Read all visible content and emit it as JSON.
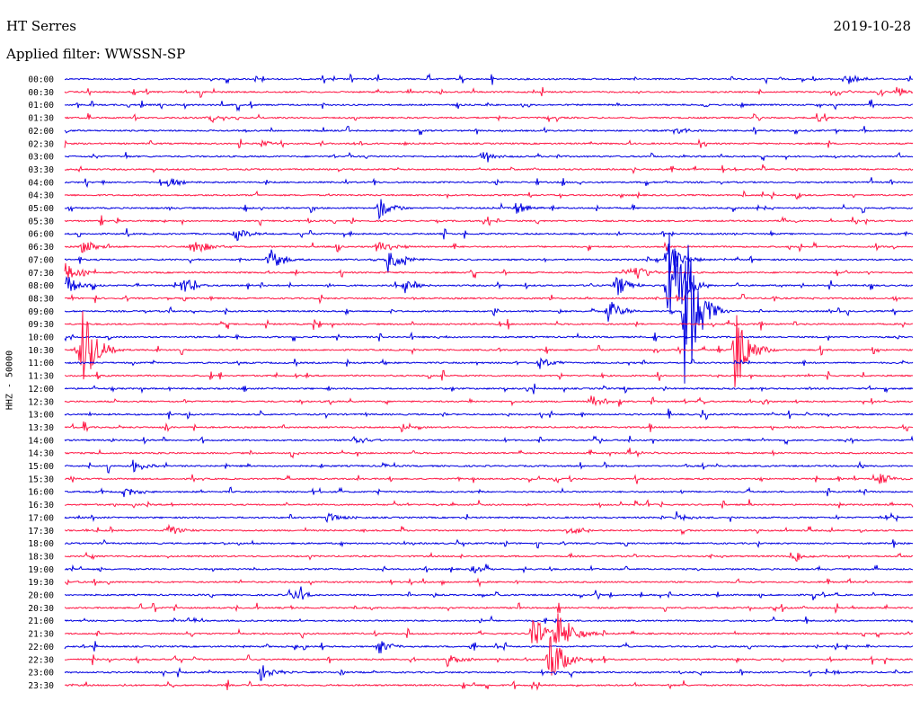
{
  "header": {
    "station": "HT Serres",
    "date": "2019-10-28",
    "filter": "Applied filter: WWSSN-SP"
  },
  "y_axis_label": "HHZ - 50000",
  "chart_data": {
    "type": "line",
    "title": "HT Serres",
    "subtitle": "Applied filter: WWSSN-SP",
    "date": "2019-10-28",
    "channel_label": "HHZ - 50000",
    "row_labels": [
      "00:00",
      "00:30",
      "01:00",
      "01:30",
      "02:00",
      "02:30",
      "03:00",
      "03:30",
      "04:00",
      "04:30",
      "05:00",
      "05:30",
      "06:00",
      "06:30",
      "07:00",
      "07:30",
      "08:00",
      "08:30",
      "09:00",
      "09:30",
      "10:00",
      "10:30",
      "11:00",
      "11:30",
      "12:00",
      "12:30",
      "13:00",
      "13:30",
      "14:00",
      "14:30",
      "15:00",
      "15:30",
      "16:00",
      "16:30",
      "17:00",
      "17:30",
      "18:00",
      "18:30",
      "19:00",
      "19:30",
      "20:00",
      "20:30",
      "21:00",
      "21:30",
      "22:00",
      "22:30",
      "23:00",
      "23:30"
    ],
    "row_minutes": 30,
    "colors": [
      "#0000e0",
      "#ff1744"
    ],
    "events": [
      {
        "row": 0,
        "t": 0.92,
        "amp": 10
      },
      {
        "row": 1,
        "t": 0.98,
        "amp": 6
      },
      {
        "row": 3,
        "t": 0.17,
        "amp": 3
      },
      {
        "row": 4,
        "t": 0.72,
        "amp": 5
      },
      {
        "row": 5,
        "t": 0.23,
        "amp": 4
      },
      {
        "row": 6,
        "t": 0.49,
        "amp": 7
      },
      {
        "row": 8,
        "t": 0.12,
        "amp": 7
      },
      {
        "row": 10,
        "t": 0.37,
        "amp": 14
      },
      {
        "row": 10,
        "t": 0.53,
        "amp": 9
      },
      {
        "row": 12,
        "t": 0.2,
        "amp": 9
      },
      {
        "row": 13,
        "t": 0.02,
        "amp": 10
      },
      {
        "row": 13,
        "t": 0.15,
        "amp": 14
      },
      {
        "row": 13,
        "t": 0.37,
        "amp": 13
      },
      {
        "row": 14,
        "t": 0.24,
        "amp": 16
      },
      {
        "row": 14,
        "t": 0.38,
        "amp": 16
      },
      {
        "row": 14,
        "t": 0.71,
        "amp": 26
      },
      {
        "row": 15,
        "t": 0.0,
        "amp": 12
      },
      {
        "row": 15,
        "t": 0.67,
        "amp": 14
      },
      {
        "row": 16,
        "t": 0.0,
        "amp": 14
      },
      {
        "row": 16,
        "t": 0.14,
        "amp": 10
      },
      {
        "row": 16,
        "t": 0.4,
        "amp": 10
      },
      {
        "row": 16,
        "t": 0.65,
        "amp": 14
      },
      {
        "row": 16,
        "t": 0.71,
        "amp": 95
      },
      {
        "row": 18,
        "t": 0.64,
        "amp": 16
      },
      {
        "row": 18,
        "t": 0.73,
        "amp": 130
      },
      {
        "row": 21,
        "t": 0.02,
        "amp": 55
      },
      {
        "row": 21,
        "t": 0.79,
        "amp": 58
      },
      {
        "row": 22,
        "t": 0.56,
        "amp": 8
      },
      {
        "row": 25,
        "t": 0.62,
        "amp": 8
      },
      {
        "row": 28,
        "t": 0.34,
        "amp": 9
      },
      {
        "row": 30,
        "t": 0.08,
        "amp": 8
      },
      {
        "row": 31,
        "t": 0.96,
        "amp": 8
      },
      {
        "row": 32,
        "t": 0.07,
        "amp": 7
      },
      {
        "row": 34,
        "t": 0.31,
        "amp": 9
      },
      {
        "row": 34,
        "t": 0.72,
        "amp": 7
      },
      {
        "row": 35,
        "t": 0.12,
        "amp": 9
      },
      {
        "row": 35,
        "t": 0.6,
        "amp": 8
      },
      {
        "row": 37,
        "t": 0.86,
        "amp": 8
      },
      {
        "row": 38,
        "t": 0.48,
        "amp": 5
      },
      {
        "row": 40,
        "t": 0.27,
        "amp": 8
      },
      {
        "row": 43,
        "t": 0.55,
        "amp": 28
      },
      {
        "row": 43,
        "t": 0.58,
        "amp": 42
      },
      {
        "row": 44,
        "t": 0.37,
        "amp": 10
      },
      {
        "row": 45,
        "t": 0.45,
        "amp": 8
      },
      {
        "row": 45,
        "t": 0.57,
        "amp": 42
      },
      {
        "row": 46,
        "t": 0.23,
        "amp": 11
      }
    ]
  }
}
